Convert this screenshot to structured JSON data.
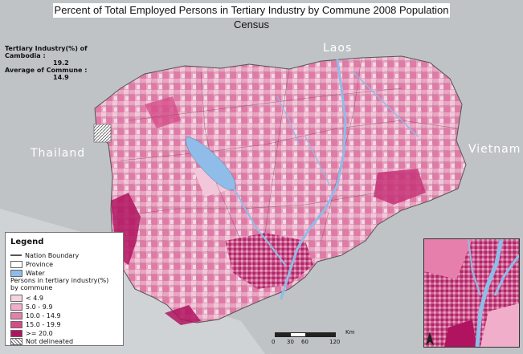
{
  "title": "Percent of Total Employed Persons in Tertiary Industry by Commune  2008 Population Census",
  "countries": {
    "laos": "Laos",
    "thailand": "Thailand",
    "vietnam": "Vietnam"
  },
  "stats": {
    "line1": "Tertiary Industry(%) of Cambodia :",
    "line2": "19.2",
    "line3": "Average of Commune :",
    "line4": "14.9"
  },
  "legend": {
    "title": "Legend",
    "nation_boundary": "Nation Boundary",
    "province": "Province",
    "water": "Water",
    "persons_label_1": "Persons in tertiary industry(%)",
    "persons_label_2": "by commune",
    "classes": [
      {
        "label": "< 4.9",
        "color": "#f6d3e3"
      },
      {
        "label": "5.0 - 9.9",
        "color": "#f0aeca"
      },
      {
        "label": "10.0 - 14.9",
        "color": "#e67fab"
      },
      {
        "label": "15.0 - 19.9",
        "color": "#d44d88"
      },
      {
        "label": ">= 20.0",
        "color": "#b01460"
      }
    ],
    "not_delineated": "Not delineated",
    "water_color": "#8fbce8"
  },
  "scale": {
    "unit": "Km",
    "ticks": [
      "0",
      "30",
      "60",
      "120"
    ]
  }
}
